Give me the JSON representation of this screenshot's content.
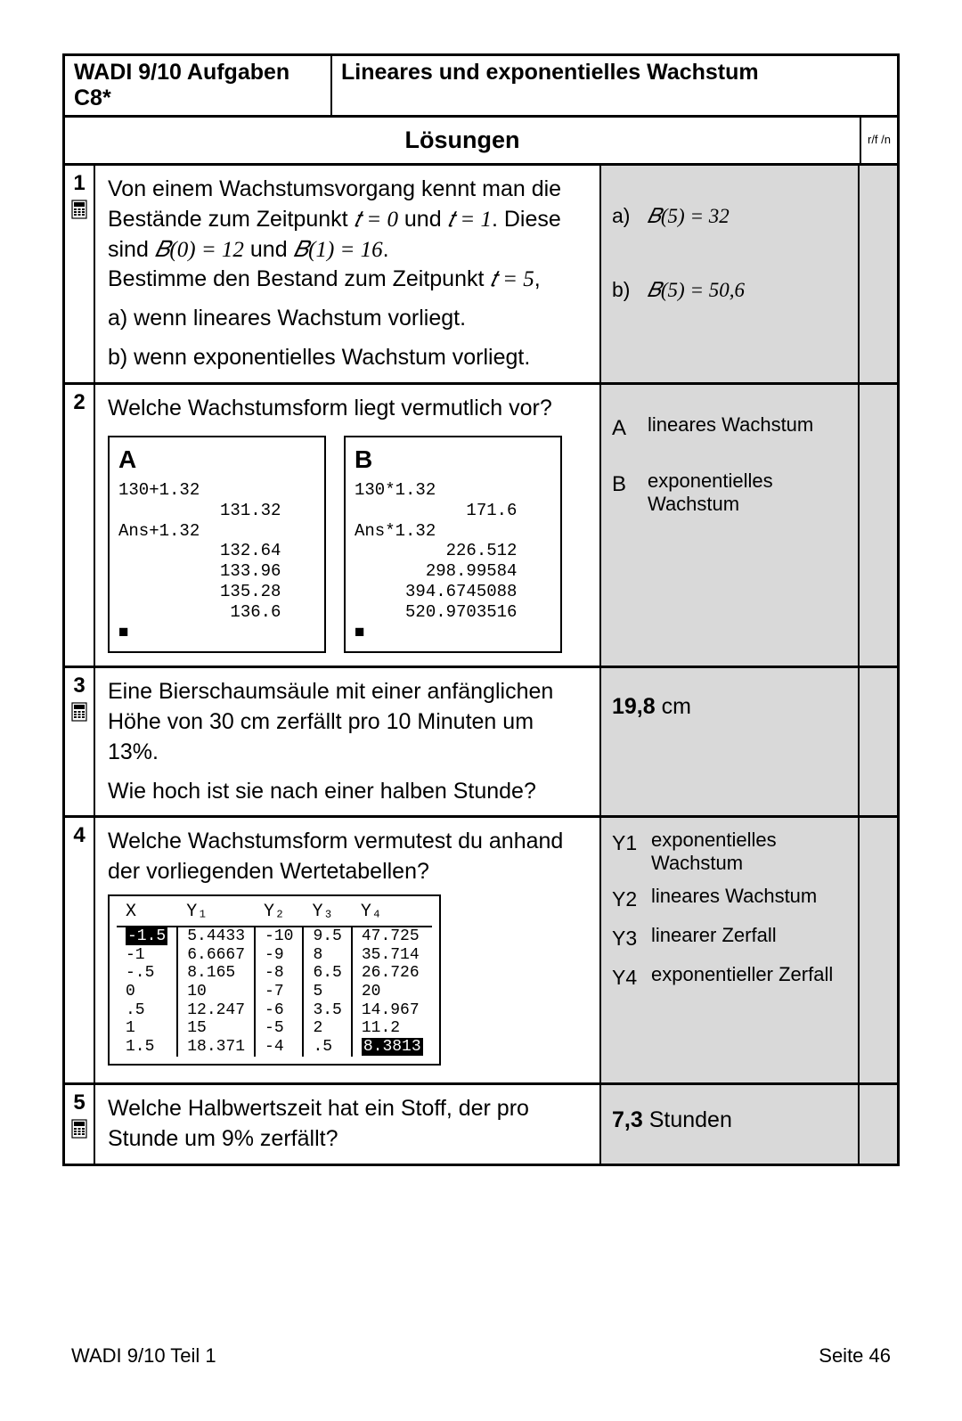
{
  "header": {
    "left": "WADI  9/10 Aufgaben C8*",
    "right": "Lineares und exponentielles Wachstum",
    "sub": "Lösungen",
    "rf": "r/f\n/n"
  },
  "tasks": {
    "t1": {
      "num": "1",
      "p1a": "Von einem Wachstumsvorgang kennt man die Bestände zum Zeitpunkt ",
      "p1b": " und ",
      "p1c": ". Diese sind ",
      "p1d": " und ",
      "p1e": ".",
      "p2a": "Bestimme den Bestand zum Zeitpunkt ",
      "p2b": ",",
      "pa": "a) wenn lineares Wachstum vorliegt.",
      "pb": "b) wenn exponentielles Wachstum vorliegt.",
      "ans_a_lbl": "a)",
      "ans_a": "𝐵(5) = 32",
      "ans_b_lbl": "b)",
      "ans_b": "𝐵(5) = 50,6"
    },
    "t2": {
      "num": "2",
      "q": "Welche Wachstumsform liegt vermutlich vor?",
      "screenA_label": "A",
      "screenA": "130+1.32\n          131.32\nAns+1.32\n          132.64\n          133.96\n          135.28\n           136.6\n■",
      "screenB_label": "B",
      "screenB": "130*1.32\n           171.6\nAns*1.32\n         226.512\n       298.99584\n     394.6745088\n     520.9703516\n■",
      "ansA_lbl": "A",
      "ansA": "lineares Wachstum",
      "ansB_lbl": "B",
      "ansB": "exponentielles Wachstum"
    },
    "t3": {
      "num": "3",
      "q1": "Eine Bierschaumsäule mit einer anfänglichen Höhe von 30 cm zerfällt pro 10 Minuten um 13%.",
      "q2": "Wie hoch ist sie nach einer halben Stunde?",
      "ans_val": "19,8",
      "ans_unit": " cm"
    },
    "t4": {
      "num": "4",
      "q": "Welche Wachstumsform vermutest du anhand der vorliegenden Wertetabellen?",
      "headers": [
        "X",
        "Y₁",
        "Y₂",
        "Y₃",
        "Y₄"
      ],
      "rows": [
        [
          "-1.5",
          "5.4433",
          "-10",
          "9.5",
          "47.725"
        ],
        [
          "-1",
          "6.6667",
          "-9",
          "8",
          "35.714"
        ],
        [
          "-.5",
          "8.165",
          "-8",
          "6.5",
          "26.726"
        ],
        [
          "0",
          "10",
          "-7",
          "5",
          "20"
        ],
        [
          ".5",
          "12.247",
          "-6",
          "3.5",
          "14.967"
        ],
        [
          "1",
          "15",
          "-5",
          "2",
          "11.2"
        ],
        [
          "1.5",
          "18.371",
          "-4",
          ".5",
          "8.3813"
        ]
      ],
      "y1_lbl": "Y1",
      "y1": "exponentielles Wachstum",
      "y2_lbl": "Y2",
      "y2": "lineares Wachstum",
      "y3_lbl": "Y3",
      "y3": "linearer Zerfall",
      "y4_lbl": "Y4",
      "y4": "exponentieller Zerfall"
    },
    "t5": {
      "num": "5",
      "q": "Welche Halbwertszeit hat ein Stoff, der pro Stunde um 9% zerfällt?",
      "ans_val": "7,3",
      "ans_unit": " Stunden"
    }
  },
  "footer": {
    "left": "WADI 9/10 Teil 1",
    "right": "Seite 46"
  }
}
